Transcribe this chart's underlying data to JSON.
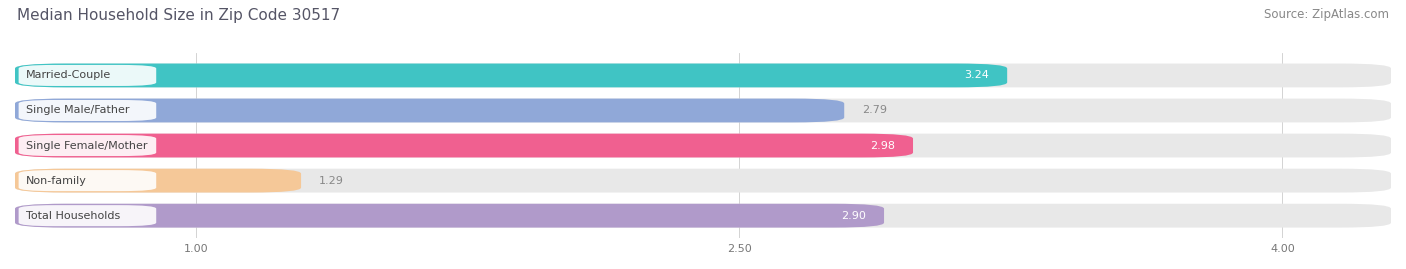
{
  "title": "Median Household Size in Zip Code 30517",
  "source": "Source: ZipAtlas.com",
  "categories": [
    "Married-Couple",
    "Single Male/Father",
    "Single Female/Mother",
    "Non-family",
    "Total Households"
  ],
  "values": [
    3.24,
    2.79,
    2.98,
    1.29,
    2.9
  ],
  "bar_colors": [
    "#40c4c4",
    "#90a8d8",
    "#f06090",
    "#f5c898",
    "#b09aca"
  ],
  "value_labels": [
    "3.24",
    "2.79",
    "2.98",
    "1.29",
    "2.90"
  ],
  "xlim_data_min": 0.5,
  "xlim_data_max": 4.3,
  "xticks": [
    1.0,
    2.5,
    4.0
  ],
  "xtick_labels": [
    "1.00",
    "2.50",
    "4.00"
  ],
  "value_label_inside": [
    true,
    false,
    true,
    false,
    true
  ],
  "value_label_color_inside": "#ffffff",
  "value_label_color_outside": "#888888",
  "background_color": "#ffffff",
  "bar_bg_color": "#e8e8e8",
  "label_bg_color": "#ffffff",
  "title_fontsize": 11,
  "source_fontsize": 8.5,
  "label_fontsize": 8,
  "value_fontsize": 8,
  "bar_height": 0.68,
  "bar_gap": 0.12
}
